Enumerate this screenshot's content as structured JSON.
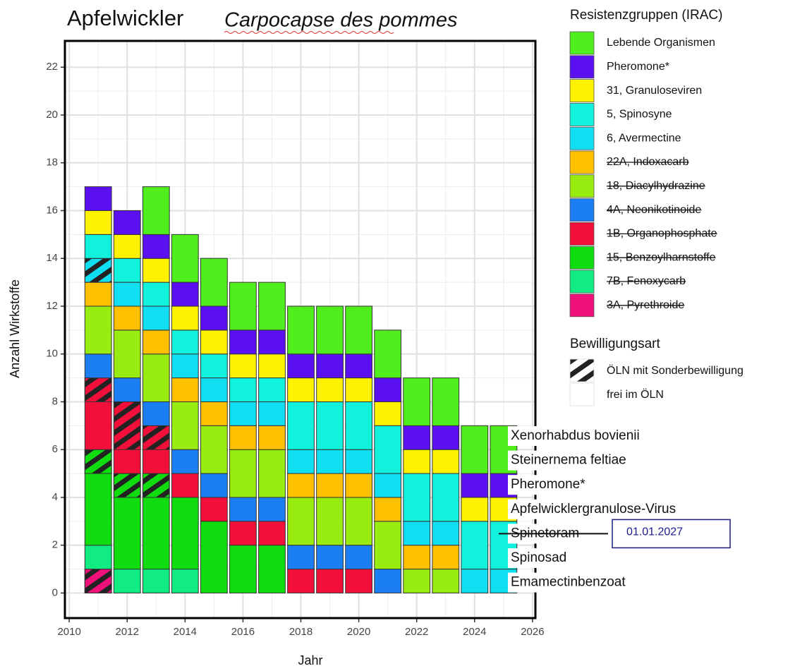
{
  "chart_data": {
    "type": "stacked_bar",
    "title": "Apfelwickler",
    "subtitle": "Carpocapse des pommes",
    "xlabel": "Jahr",
    "ylabel": "Anzahl Wirkstoffe",
    "legend_title": "Resistenzgruppen (IRAC)",
    "x": [
      2011,
      2012,
      2013,
      2014,
      2015,
      2016,
      2017,
      2018,
      2019,
      2020,
      2021,
      2022,
      2023,
      2024,
      2025
    ],
    "series": [
      {
        "name": "3A, Pyrethroide",
        "color": "#f0107a",
        "struck": true,
        "values": [
          1,
          0,
          0,
          0,
          0,
          0,
          0,
          0,
          0,
          0,
          0,
          0,
          0,
          0,
          0
        ],
        "hatched": [
          1,
          0,
          0,
          0,
          0,
          0,
          0,
          0,
          0,
          0,
          0,
          0,
          0,
          0,
          0
        ]
      },
      {
        "name": "7B, Fenoxycarb",
        "color": "#10ec82",
        "struck": true,
        "values": [
          1,
          1,
          1,
          1,
          0,
          0,
          0,
          0,
          0,
          0,
          0,
          0,
          0,
          0,
          0
        ],
        "hatched": [
          0,
          0,
          0,
          0,
          0,
          0,
          0,
          0,
          0,
          0,
          0,
          0,
          0,
          0,
          0
        ]
      },
      {
        "name": "15, Benzoylharnstoffe",
        "color": "#10dd10",
        "struck": true,
        "values": [
          4,
          4,
          4,
          3,
          3,
          2,
          2,
          0,
          0,
          0,
          0,
          0,
          0,
          0,
          0
        ],
        "hatched": [
          1,
          1,
          1,
          0,
          0,
          0,
          0,
          0,
          0,
          0,
          0,
          0,
          0,
          0,
          0
        ]
      },
      {
        "name": "1B, Organophosphate",
        "color": "#f2103a",
        "struck": true,
        "values": [
          3,
          3,
          2,
          1,
          1,
          1,
          1,
          1,
          1,
          1,
          0,
          0,
          0,
          0,
          0
        ],
        "hatched": [
          1,
          2,
          1,
          0,
          0,
          0,
          0,
          0,
          0,
          0,
          0,
          0,
          0,
          0,
          0
        ]
      },
      {
        "name": "4A, Neonikotinoide",
        "color": "#1b7ef2",
        "struck": true,
        "values": [
          1,
          1,
          1,
          1,
          1,
          1,
          1,
          1,
          1,
          1,
          1,
          0,
          0,
          0,
          0
        ],
        "hatched": [
          0,
          0,
          0,
          0,
          0,
          0,
          0,
          0,
          0,
          0,
          0,
          0,
          0,
          0,
          0
        ]
      },
      {
        "name": "18, Diacylhydrazine",
        "color": "#99ec10",
        "struck": true,
        "values": [
          2,
          2,
          2,
          2,
          2,
          2,
          2,
          2,
          2,
          2,
          2,
          1,
          1,
          0,
          0
        ],
        "hatched": [
          0,
          0,
          0,
          0,
          0,
          0,
          0,
          0,
          0,
          0,
          0,
          0,
          0,
          0,
          0
        ]
      },
      {
        "name": "22A, Indoxacarb",
        "color": "#ffc000",
        "struck": true,
        "values": [
          1,
          1,
          1,
          1,
          1,
          1,
          1,
          1,
          1,
          1,
          1,
          1,
          1,
          0,
          0
        ],
        "hatched": [
          0,
          0,
          0,
          0,
          0,
          0,
          0,
          0,
          0,
          0,
          0,
          0,
          0,
          0,
          0
        ]
      },
      {
        "name": "6, Avermectine",
        "color": "#10dff2",
        "struck": false,
        "values": [
          1,
          1,
          1,
          1,
          1,
          1,
          1,
          1,
          1,
          1,
          1,
          1,
          1,
          1,
          1
        ],
        "hatched": [
          1,
          0,
          0,
          0,
          0,
          0,
          0,
          0,
          0,
          0,
          0,
          0,
          0,
          0,
          0
        ]
      },
      {
        "name": "5, Spinosyne",
        "color": "#10f2dc",
        "struck": false,
        "values": [
          1,
          1,
          1,
          1,
          1,
          1,
          1,
          2,
          2,
          2,
          2,
          2,
          2,
          2,
          2
        ],
        "hatched": [
          0,
          0,
          0,
          0,
          0,
          0,
          0,
          0,
          0,
          0,
          0,
          0,
          0,
          0,
          0
        ]
      },
      {
        "name": "31, Granuloseviren",
        "color": "#fff200",
        "struck": false,
        "values": [
          1,
          1,
          1,
          1,
          1,
          1,
          1,
          1,
          1,
          1,
          1,
          1,
          1,
          1,
          1
        ],
        "hatched": [
          0,
          0,
          0,
          0,
          0,
          0,
          0,
          0,
          0,
          0,
          0,
          0,
          0,
          0,
          0
        ]
      },
      {
        "name": "Pheromone*",
        "color": "#5a10f0",
        "struck": false,
        "values": [
          1,
          1,
          1,
          1,
          1,
          1,
          1,
          1,
          1,
          1,
          1,
          1,
          1,
          1,
          1
        ],
        "hatched": [
          0,
          0,
          0,
          0,
          0,
          0,
          0,
          0,
          0,
          0,
          0,
          0,
          0,
          0,
          0
        ]
      },
      {
        "name": "Lebende Organismen",
        "color": "#50ee1c",
        "struck": false,
        "values": [
          0,
          0,
          2,
          2,
          2,
          2,
          2,
          2,
          2,
          2,
          2,
          2,
          2,
          2,
          2
        ],
        "hatched": [
          0,
          0,
          0,
          0,
          0,
          0,
          0,
          0,
          0,
          0,
          0,
          0,
          0,
          0,
          0
        ]
      }
    ],
    "legend2_title": "Bewilligungsart",
    "legend2": [
      "ÖLN mit Sonderbewilligung",
      "frei im ÖLN"
    ],
    "annotations": [
      {
        "text": "Xenorhabdus bovienii",
        "struck": false
      },
      {
        "text": "Steinernema feltiae",
        "struck": false
      },
      {
        "text": "Pheromone*",
        "struck": false
      },
      {
        "text": "Apfelwicklergranulose-Virus",
        "struck": false
      },
      {
        "text": "Spinetoram",
        "struck": true
      },
      {
        "text": "Spinosad",
        "struck": false
      },
      {
        "text": "Emamectinbenzoat",
        "struck": false
      }
    ],
    "date_box": "01.01.2027",
    "xlim": [
      2009.85,
      2026.1
    ],
    "ylim": [
      -1.05,
      23.1
    ],
    "xticks": [
      2010,
      2012,
      2014,
      2016,
      2018,
      2020,
      2022,
      2024,
      2026
    ],
    "yticks": [
      0,
      2,
      4,
      6,
      8,
      10,
      12,
      14,
      16,
      18,
      20,
      22
    ],
    "grid": true
  }
}
